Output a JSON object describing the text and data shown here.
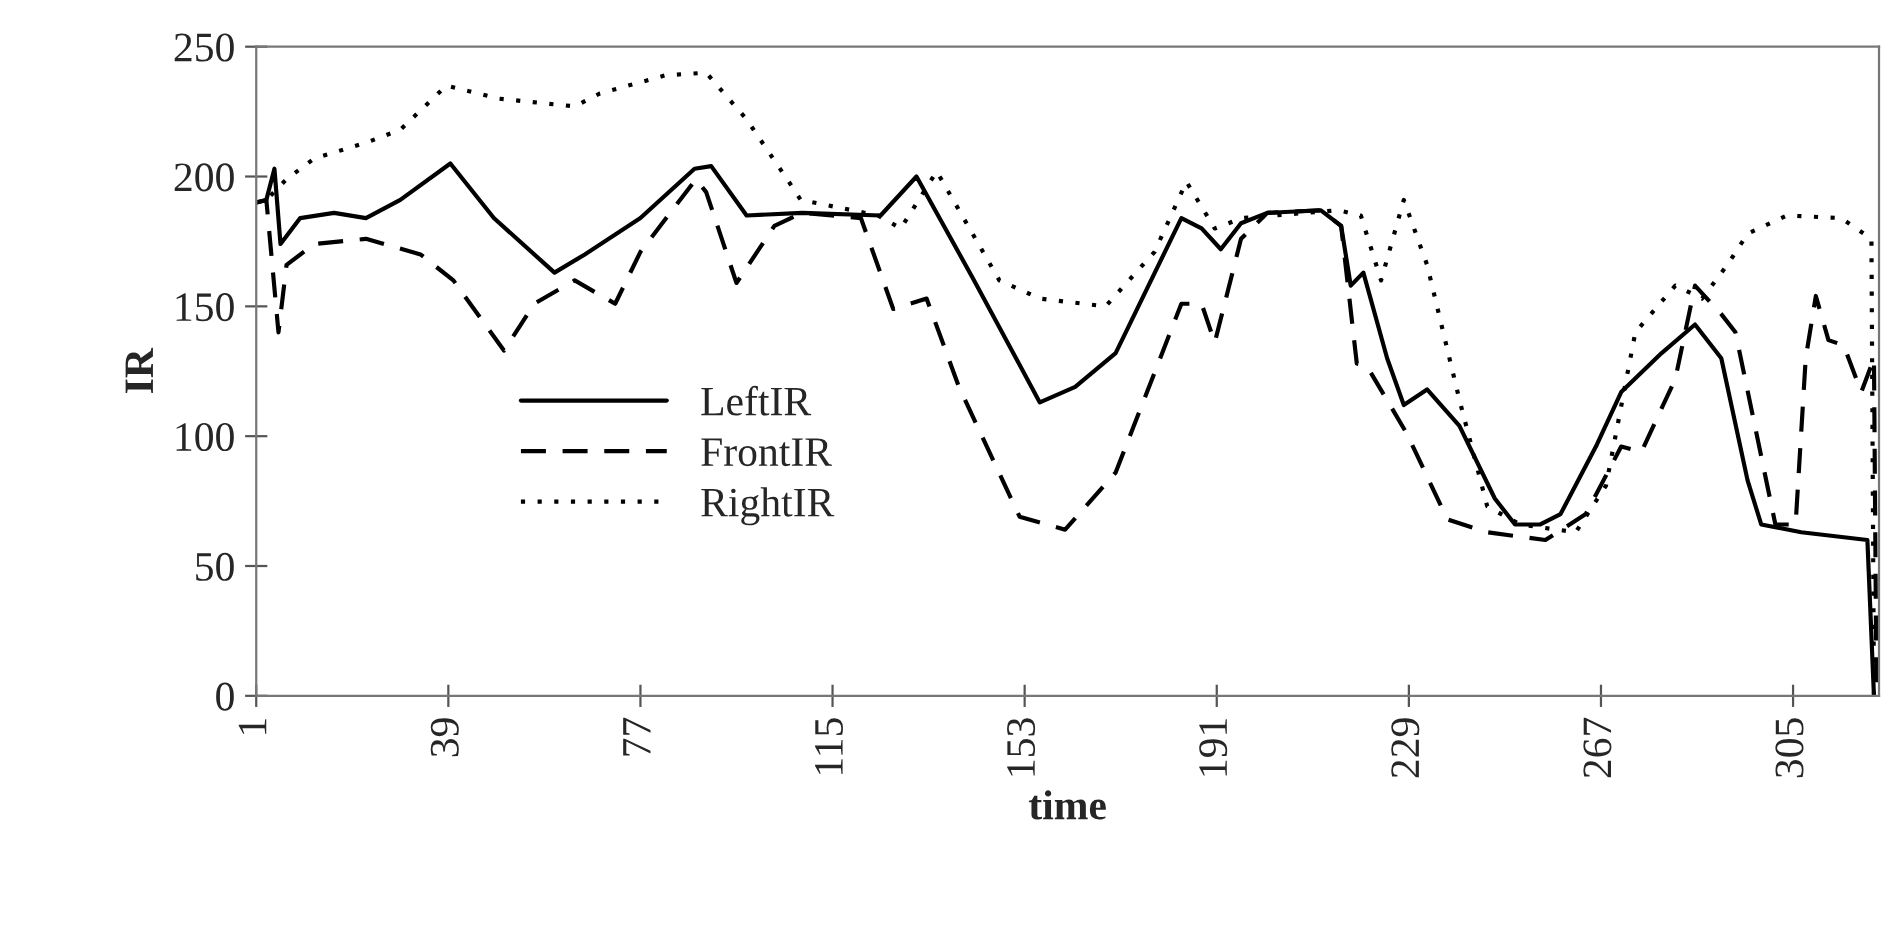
{
  "chart_data": {
    "type": "line",
    "xlabel": "time",
    "ylabel": "IR",
    "xlim": [
      1,
      322
    ],
    "xticks": [
      1,
      39,
      77,
      115,
      153,
      191,
      229,
      267,
      305
    ],
    "ylim": [
      0,
      250
    ],
    "yticks": [
      0,
      50,
      100,
      150,
      200,
      250
    ],
    "grid": false,
    "legend": "center left",
    "marker": "none",
    "series": [
      {
        "name": "LeftIR",
        "color": "#000000",
        "line_style": "solid",
        "x": [
          1,
          3,
          4.6,
          5.8,
          9.7,
          16.4,
          22.7,
          29.5,
          39.4,
          48,
          60,
          66,
          77,
          87.7,
          91,
          98,
          109,
          124.5,
          131.6,
          143,
          156,
          163,
          171,
          184,
          188,
          191.8,
          195.8,
          201,
          211.6,
          215.6,
          217.5,
          220,
          224.7,
          228,
          232.6,
          239,
          246,
          250,
          255,
          259,
          266,
          271,
          279,
          285.6,
          290.8,
          296,
          298.7,
          306.6,
          319.7,
          321
        ],
        "values": [
          190,
          191,
          203,
          174,
          184,
          186,
          184,
          191,
          205,
          184,
          163,
          170,
          184,
          203,
          204,
          185,
          186,
          185,
          200,
          160,
          113,
          119,
          132,
          184,
          180,
          172,
          182,
          186,
          187,
          181,
          158,
          163,
          130,
          112,
          118,
          104,
          76,
          66,
          66,
          70,
          96,
          117,
          132,
          143,
          130,
          83,
          66,
          63,
          60,
          0
        ]
      },
      {
        "name": "FrontIR",
        "color": "#000000",
        "line_style": "dashed",
        "x": [
          1,
          3,
          5.4,
          7,
          12.5,
          22.7,
          33.5,
          40,
          50,
          56,
          64,
          72,
          77,
          88,
          90,
          96,
          103.5,
          109,
          120.6,
          127,
          133.6,
          140,
          152,
          161,
          171,
          184,
          188,
          190.6,
          195.8,
          201,
          211.6,
          215.6,
          218.7,
          220.7,
          228.6,
          236.6,
          244.5,
          256,
          264,
          271,
          275,
          281.7,
          285.6,
          290.8,
          293.6,
          301.5,
          305.5,
          307.5,
          309.5,
          312,
          315,
          318.5,
          321,
          321.5
        ],
        "values": [
          190,
          191,
          140,
          166,
          174,
          176,
          170,
          160,
          133,
          151,
          160,
          151,
          171,
          199,
          194,
          159,
          181,
          186,
          184,
          149,
          153,
          119,
          69,
          64,
          86,
          151,
          151,
          136,
          176,
          186,
          187,
          181,
          128,
          127,
          101,
          68,
          63,
          60,
          70,
          96,
          94,
          122,
          158,
          147,
          140,
          66,
          66,
          130,
          154,
          137,
          135,
          117,
          130,
          0
        ]
      },
      {
        "name": "RightIR",
        "color": "#000000",
        "line_style": "dotted",
        "x": [
          1,
          3,
          7,
          12.5,
          22.7,
          29.5,
          38.6,
          49,
          64,
          69,
          82,
          90,
          98,
          106,
          108.7,
          124,
          128.5,
          135.6,
          148,
          156,
          169,
          178.7,
          185,
          190.6,
          196,
          215,
          219.5,
          223.5,
          228,
          232.6,
          239,
          244.5,
          251,
          262,
          268,
          273.8,
          281.7,
          287,
          292,
          296,
          303.8,
          314.5,
          320.5,
          321
        ],
        "values": [
          190,
          191,
          199,
          207,
          213,
          218,
          235,
          230,
          227,
          232,
          239,
          240,
          222,
          199,
          191,
          185,
          180,
          202,
          160,
          153,
          150,
          171,
          198,
          180,
          184,
          187,
          185,
          160,
          191,
          166,
          114,
          73,
          66,
          63,
          81,
          140,
          158,
          153,
          166,
          178,
          185,
          184,
          176,
          0
        ]
      }
    ]
  }
}
